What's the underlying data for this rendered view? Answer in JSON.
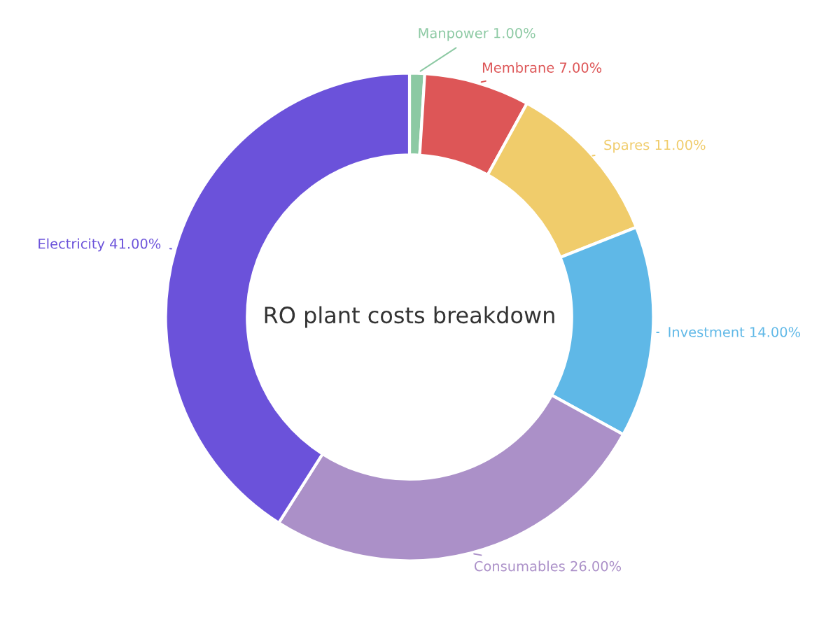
{
  "chart_data": {
    "type": "donut",
    "title": "RO plant costs breakdown",
    "categories": [
      "Manpower",
      "Membrane",
      "Spares",
      "Investment",
      "Consumables",
      "Electricity"
    ],
    "values": [
      1,
      7,
      11,
      14,
      26,
      41
    ],
    "value_labels": [
      "1.00%",
      "7.00%",
      "11.00%",
      "14.00%",
      "26.00%",
      "41.00%"
    ],
    "colors": [
      "#8cc9a3",
      "#dd5657",
      "#f0cc6b",
      "#5fb8e7",
      "#ab90c8",
      "#6b52da"
    ],
    "legend": false
  }
}
